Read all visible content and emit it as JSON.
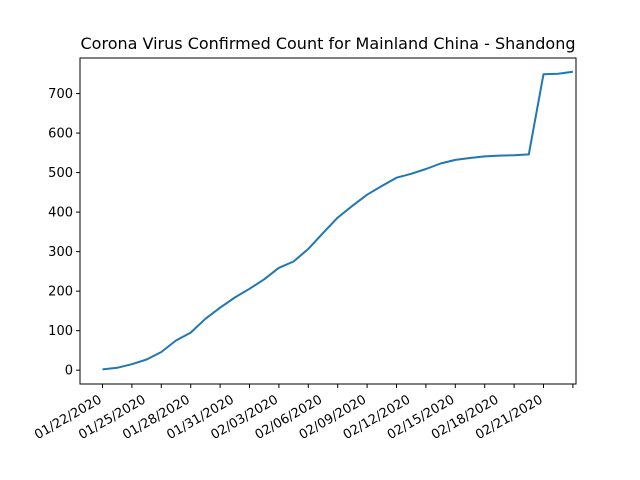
{
  "chart_data": {
    "type": "line",
    "title": "Corona Virus Confirmed Count for Mainland China - Shandong",
    "xlabel": "",
    "ylabel": "",
    "x": [
      "01/22/2020",
      "01/23/2020",
      "01/24/2020",
      "01/25/2020",
      "01/26/2020",
      "01/27/2020",
      "01/28/2020",
      "01/29/2020",
      "01/30/2020",
      "01/31/2020",
      "02/01/2020",
      "02/02/2020",
      "02/03/2020",
      "02/04/2020",
      "02/05/2020",
      "02/06/2020",
      "02/07/2020",
      "02/08/2020",
      "02/09/2020",
      "02/10/2020",
      "02/11/2020",
      "02/12/2020",
      "02/13/2020",
      "02/14/2020",
      "02/15/2020",
      "02/16/2020",
      "02/17/2020",
      "02/18/2020",
      "02/19/2020",
      "02/20/2020",
      "02/21/2020",
      "02/22/2020",
      "02/23/2020"
    ],
    "series": [
      {
        "name": "",
        "color": "#1f77b4",
        "values": [
          2,
          6,
          15,
          27,
          46,
          75,
          95,
          130,
          158,
          184,
          206,
          230,
          259,
          275,
          307,
          347,
          386,
          416,
          444,
          466,
          487,
          497,
          509,
          523,
          532,
          537,
          541,
          543,
          544,
          546,
          749,
          750,
          755
        ]
      }
    ],
    "x_tick_labels": [
      "01/22/2020",
      "01/25/2020",
      "01/28/2020",
      "01/31/2020",
      "02/03/2020",
      "02/06/2020",
      "02/09/2020",
      "02/12/2020",
      "02/15/2020",
      "02/18/2020",
      "02/21/2020"
    ],
    "y_ticks": [
      0,
      100,
      200,
      300,
      400,
      500,
      600,
      700
    ],
    "ylim": [
      -35,
      790
    ],
    "grid": false,
    "legend": "none"
  }
}
